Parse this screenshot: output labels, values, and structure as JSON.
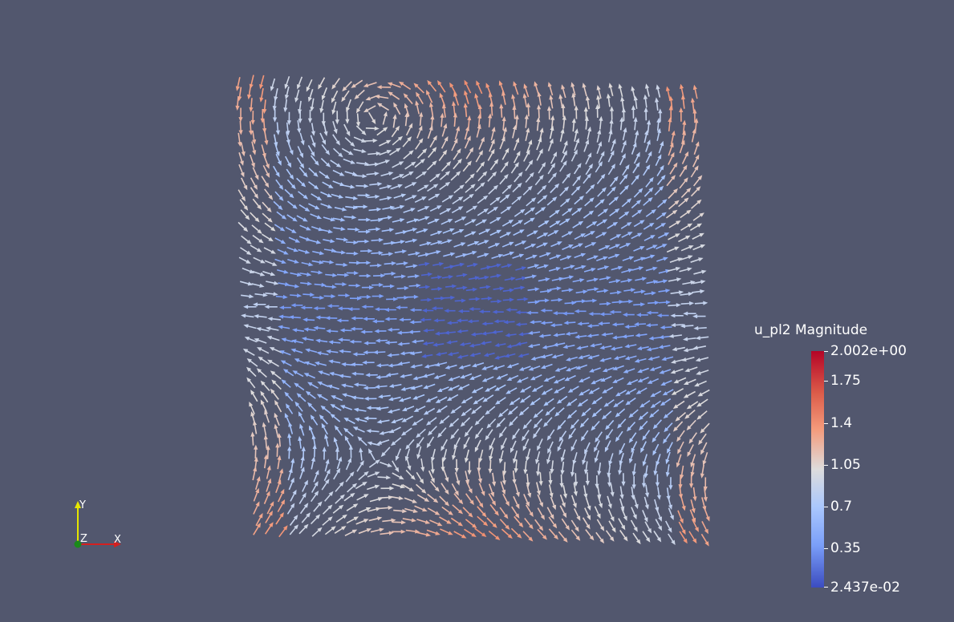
{
  "legend": {
    "title": "u_pl2 Magnitude",
    "max_label": "2.002e+00",
    "min_label": "2.437e-02",
    "ticks": [
      "1.75",
      "1.4",
      "1.05",
      "0.7",
      "0.35"
    ],
    "range": [
      0.02437,
      2.002
    ],
    "colormap": "Cool to Warm",
    "colors": [
      "#3b4cc0",
      "#7b9ff9",
      "#aac7fd",
      "#dddcdc",
      "#f49a7b",
      "#dc5d4a",
      "#b40426"
    ]
  },
  "axes_triad": {
    "x_label": "X",
    "y_label": "Y",
    "z_label": "Z"
  },
  "colors": {
    "background": "#52576e"
  }
}
